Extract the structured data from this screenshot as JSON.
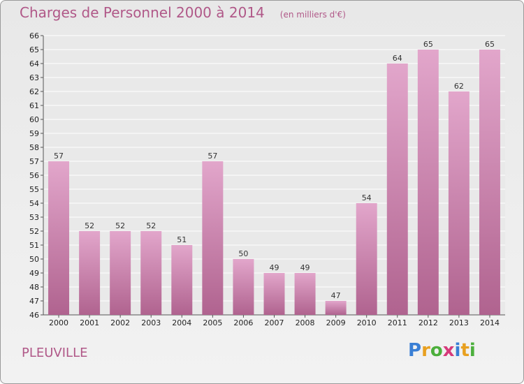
{
  "chart_data": {
    "type": "bar",
    "title": "Charges de Personnel 2000 à 2014",
    "subtitle": "(en milliers d'€)",
    "categories": [
      "2000",
      "2001",
      "2002",
      "2003",
      "2004",
      "2005",
      "2006",
      "2007",
      "2008",
      "2009",
      "2010",
      "2011",
      "2012",
      "2013",
      "2014"
    ],
    "values": [
      57,
      52,
      52,
      52,
      51,
      57,
      50,
      49,
      49,
      47,
      54,
      64,
      65,
      62,
      65
    ],
    "ylim": [
      46,
      66
    ],
    "ytick_step": 1,
    "grid": true,
    "bar_color_top": "#e2a6cb",
    "bar_color_bottom": "#b0638f"
  },
  "commune": "PLEUVILLE",
  "logo": {
    "letters": [
      "P",
      "r",
      "o",
      "x",
      "i",
      "t",
      "i"
    ],
    "colors": [
      "#3a7fd5",
      "#e8a020",
      "#4caf3c",
      "#d63a7a",
      "#3a7fd5",
      "#e8a020",
      "#4caf3c"
    ]
  }
}
